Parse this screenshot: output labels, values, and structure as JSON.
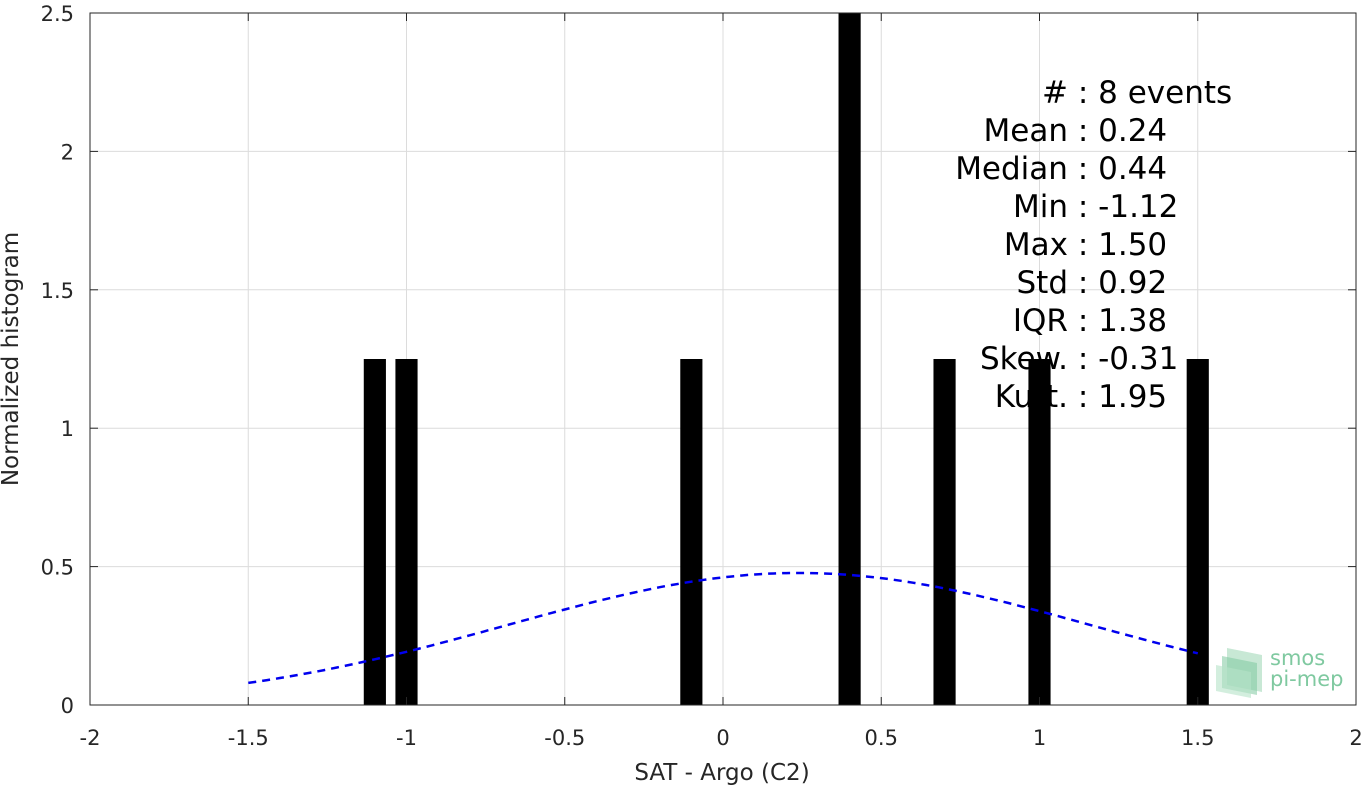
{
  "chart_data": {
    "type": "bar",
    "xlabel": "SAT - Argo (C2)",
    "ylabel": "Normalized histogram",
    "xlim": [
      -2,
      2
    ],
    "ylim": [
      0,
      2.5
    ],
    "xticks": [
      "-2",
      "-1.5",
      "-1",
      "-0.5",
      "0",
      "0.5",
      "1",
      "1.5",
      "2"
    ],
    "yticks": [
      "0",
      "0.5",
      "1",
      "1.5",
      "2",
      "2.5"
    ],
    "grid": true,
    "bars": {
      "color": "#000000",
      "x": [
        -1.1,
        -1.0,
        -0.1,
        0.4,
        0.7,
        1.0,
        1.5
      ],
      "values": [
        1.25,
        1.25,
        1.25,
        2.5,
        1.25,
        1.25,
        1.25
      ]
    },
    "fit_curve": {
      "style": "dashed",
      "color": "#0000ee",
      "x_range": [
        -1.5,
        1.5
      ],
      "mean": 0.24,
      "std": 0.92
    },
    "stats": [
      "#  : 8 events",
      "Mean : 0.24",
      "Median : 0.44",
      "Min : -1.12",
      "Max : 1.50",
      "Std : 0.92",
      "IQR : 1.38",
      "Skew. : -0.31",
      "Kurt. : 1.95"
    ]
  },
  "logo": {
    "line1": "smos",
    "line2": "pi-mep",
    "color": "#7fc9a0"
  }
}
